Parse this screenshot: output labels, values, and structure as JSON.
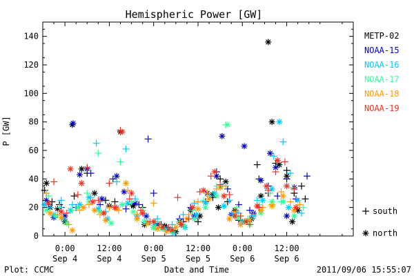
{
  "chart_data": {
    "type": "scatter",
    "title": "Hemispheric Power [GW]",
    "ylabel": "P [GW]",
    "xlabel": "Date and Time",
    "ylim": [
      0,
      150
    ],
    "yticks": [
      0,
      20,
      40,
      60,
      80,
      100,
      120,
      140
    ],
    "xlim_hours": [
      -6,
      78
    ],
    "xticks": [
      {
        "h": 0,
        "time": "0:00",
        "date": "Sep 4"
      },
      {
        "h": 12,
        "time": "12:00",
        "date": "Sep 4"
      },
      {
        "h": 24,
        "time": "0:00",
        "date": "Sep 5"
      },
      {
        "h": 36,
        "time": "12:00",
        "date": "Sep 5"
      },
      {
        "h": 48,
        "time": "0:00",
        "date": "Sep 6"
      },
      {
        "h": 60,
        "time": "12:00",
        "date": "Sep 6"
      }
    ],
    "legend_placement": "right",
    "marker_legend": [
      {
        "glyph": "+",
        "label": "south"
      },
      {
        "glyph": "*",
        "label": "north"
      }
    ],
    "series": [
      {
        "name": "METP-02",
        "color": "#000000",
        "south": [
          [
            -5.5,
            32
          ],
          [
            -3.5,
            24
          ],
          [
            -1.5,
            22
          ],
          [
            2.5,
            28
          ],
          [
            6,
            44
          ],
          [
            11,
            25
          ],
          [
            13.5,
            24
          ],
          [
            18,
            22
          ],
          [
            21,
            20
          ],
          [
            26,
            8
          ],
          [
            29,
            4
          ],
          [
            32,
            10
          ],
          [
            36,
            10
          ],
          [
            40,
            27
          ],
          [
            42,
            40
          ],
          [
            44,
            24
          ],
          [
            47,
            11
          ],
          [
            50,
            12
          ],
          [
            52,
            50
          ],
          [
            55,
            30
          ],
          [
            57,
            51
          ],
          [
            60,
            46
          ],
          [
            62,
            30
          ],
          [
            64,
            35
          ],
          [
            65,
            26
          ]
        ],
        "north": [
          [
            -5,
            37
          ],
          [
            -4,
            20
          ],
          [
            -2,
            19
          ],
          [
            0,
            10
          ],
          [
            2,
            78
          ],
          [
            4.5,
            47
          ],
          [
            8,
            30
          ],
          [
            12,
            21
          ],
          [
            15,
            73
          ],
          [
            18.5,
            21
          ],
          [
            21.5,
            8
          ],
          [
            24,
            6
          ],
          [
            27,
            7
          ],
          [
            30,
            3
          ],
          [
            31,
            10
          ],
          [
            34,
            18
          ],
          [
            36.5,
            14
          ],
          [
            40,
            29
          ],
          [
            41.5,
            20
          ],
          [
            43.5,
            38
          ],
          [
            46,
            18
          ],
          [
            48,
            10
          ],
          [
            50.5,
            12
          ],
          [
            53,
            28
          ],
          [
            55,
            136
          ],
          [
            56,
            80
          ],
          [
            58,
            50
          ],
          [
            60,
            42
          ],
          [
            61.5,
            10
          ],
          [
            63,
            18
          ]
        ]
      },
      {
        "name": "NOAA-15",
        "color": "#0000cc",
        "south": [
          [
            -4.5,
            22
          ],
          [
            -1,
            20
          ],
          [
            3,
            20
          ],
          [
            7,
            44
          ],
          [
            9.5,
            22
          ],
          [
            13,
            40
          ],
          [
            16.5,
            19
          ],
          [
            20,
            22
          ],
          [
            22.5,
            68
          ],
          [
            24,
            30
          ],
          [
            27.5,
            6
          ],
          [
            31,
            12
          ],
          [
            34,
            20
          ],
          [
            38,
            24
          ],
          [
            41,
            45
          ],
          [
            44,
            33
          ],
          [
            47,
            22
          ],
          [
            50,
            18
          ],
          [
            52.5,
            40
          ],
          [
            55,
            35
          ],
          [
            57.5,
            28
          ],
          [
            60,
            40
          ],
          [
            62.5,
            26
          ],
          [
            65.5,
            42
          ]
        ],
        "north": [
          [
            -5,
            25
          ],
          [
            -3,
            13
          ],
          [
            0,
            14
          ],
          [
            2.2,
            79
          ],
          [
            4,
            43
          ],
          [
            6,
            47
          ],
          [
            10,
            26
          ],
          [
            14,
            42
          ],
          [
            16,
            31
          ],
          [
            19,
            23
          ],
          [
            22,
            14
          ],
          [
            25,
            8
          ],
          [
            28,
            5
          ],
          [
            31.5,
            8
          ],
          [
            35,
            14
          ],
          [
            38.5,
            30
          ],
          [
            41,
            42
          ],
          [
            42.5,
            70
          ],
          [
            45,
            15
          ],
          [
            48.5,
            63
          ],
          [
            51,
            16
          ],
          [
            53,
            39
          ],
          [
            55.5,
            58
          ],
          [
            57,
            48
          ],
          [
            60,
            14
          ],
          [
            62,
            34
          ]
        ]
      },
      {
        "name": "NOAA-16",
        "color": "#00c8ff",
        "south": [
          [
            -4,
            20
          ],
          [
            -1,
            25
          ],
          [
            2,
            22
          ],
          [
            7,
            27
          ],
          [
            8.5,
            65
          ],
          [
            11,
            17
          ],
          [
            14,
            38
          ],
          [
            16.5,
            61
          ],
          [
            19,
            26
          ],
          [
            21.5,
            15
          ],
          [
            25,
            12
          ],
          [
            29,
            8
          ],
          [
            32,
            15
          ],
          [
            35,
            23
          ],
          [
            39,
            28
          ],
          [
            42.5,
            35
          ],
          [
            44.5,
            25
          ],
          [
            47,
            16
          ],
          [
            50,
            12
          ],
          [
            52,
            25
          ],
          [
            55,
            33
          ],
          [
            56.5,
            56
          ],
          [
            59,
            66
          ],
          [
            61,
            44
          ],
          [
            64,
            16
          ]
        ],
        "north": [
          [
            -5.5,
            22
          ],
          [
            -3,
            15
          ],
          [
            -0.5,
            12
          ],
          [
            1.5,
            18
          ],
          [
            4,
            22
          ],
          [
            6.5,
            27
          ],
          [
            9,
            19
          ],
          [
            11.5,
            12
          ],
          [
            14,
            20
          ],
          [
            17,
            23
          ],
          [
            19.5,
            14
          ],
          [
            22,
            10
          ],
          [
            24.5,
            8
          ],
          [
            27,
            5
          ],
          [
            29.5,
            2
          ],
          [
            32.5,
            6
          ],
          [
            35.5,
            15
          ],
          [
            38,
            23
          ],
          [
            40.5,
            30
          ],
          [
            43,
            21
          ],
          [
            45.5,
            15
          ],
          [
            48,
            10
          ],
          [
            51,
            14
          ],
          [
            53.5,
            25
          ],
          [
            56,
            33
          ],
          [
            58,
            80
          ],
          [
            60.5,
            20
          ],
          [
            63,
            25
          ]
        ]
      },
      {
        "name": "NOAA-17",
        "color": "#33ff99",
        "south": [
          [
            -4.5,
            28
          ],
          [
            -1.5,
            20
          ],
          [
            2,
            18
          ],
          [
            6,
            30
          ],
          [
            9,
            58
          ],
          [
            12,
            20
          ],
          [
            15,
            52
          ],
          [
            18,
            24
          ],
          [
            21,
            18
          ],
          [
            24.5,
            10
          ],
          [
            28,
            6
          ],
          [
            31,
            10
          ],
          [
            34.5,
            18
          ],
          [
            37.5,
            25
          ],
          [
            41,
            35
          ],
          [
            43.5,
            78
          ],
          [
            46.5,
            20
          ],
          [
            49.5,
            12
          ],
          [
            52.5,
            22
          ],
          [
            55.5,
            30
          ],
          [
            58.5,
            24
          ],
          [
            61.5,
            34
          ],
          [
            64.5,
            20
          ]
        ],
        "north": [
          [
            -5,
            18
          ],
          [
            -2.5,
            14
          ],
          [
            0.5,
            9
          ],
          [
            3.5,
            20
          ],
          [
            6.5,
            24
          ],
          [
            9.5,
            17
          ],
          [
            12.5,
            9
          ],
          [
            15.5,
            22
          ],
          [
            18.5,
            17
          ],
          [
            21.5,
            10
          ],
          [
            24,
            6
          ],
          [
            26.5,
            5
          ],
          [
            29,
            3
          ],
          [
            32,
            7
          ],
          [
            35,
            12
          ],
          [
            38,
            20
          ],
          [
            41,
            28
          ],
          [
            44,
            78
          ],
          [
            47,
            13
          ],
          [
            50,
            8
          ],
          [
            53,
            16
          ],
          [
            56,
            24
          ],
          [
            59,
            24
          ],
          [
            62,
            14
          ]
        ]
      },
      {
        "name": "NOAA-18",
        "color": "#ff9900",
        "south": [
          [
            -5,
            30
          ],
          [
            -2,
            15
          ],
          [
            1,
            8
          ],
          [
            4,
            18
          ],
          [
            6.5,
            22
          ],
          [
            9.5,
            15
          ],
          [
            12,
            20
          ],
          [
            14.5,
            18
          ],
          [
            17,
            32
          ],
          [
            19.5,
            15
          ],
          [
            22,
            8
          ],
          [
            24,
            23
          ],
          [
            26,
            6
          ],
          [
            28.5,
            5
          ],
          [
            31,
            9
          ],
          [
            33.5,
            15
          ],
          [
            36,
            24
          ],
          [
            38.5,
            30
          ],
          [
            41,
            33
          ],
          [
            43.5,
            35
          ],
          [
            46,
            17
          ],
          [
            48.5,
            10
          ],
          [
            51,
            15
          ],
          [
            53.5,
            20
          ],
          [
            56,
            22
          ],
          [
            58.5,
            31
          ],
          [
            61,
            24
          ],
          [
            63.5,
            22
          ]
        ],
        "north": [
          [
            -4,
            16
          ],
          [
            -1,
            13
          ],
          [
            2,
            4
          ],
          [
            5,
            20
          ],
          [
            8,
            18
          ],
          [
            11,
            11
          ],
          [
            14,
            19
          ],
          [
            16.5,
            37
          ],
          [
            19.5,
            12
          ],
          [
            22.5,
            9
          ],
          [
            25,
            5
          ],
          [
            27.5,
            3
          ],
          [
            30,
            6
          ],
          [
            33,
            12
          ],
          [
            36,
            19
          ],
          [
            39,
            26
          ],
          [
            42,
            34
          ],
          [
            44.5,
            12
          ],
          [
            47.5,
            8
          ],
          [
            50,
            11
          ],
          [
            53,
            18
          ],
          [
            56,
            21
          ],
          [
            59,
            28
          ],
          [
            62,
            18
          ]
        ]
      },
      {
        "name": "NOAA-19",
        "color": "#ee3322",
        "south": [
          [
            -3,
            38
          ],
          [
            0.5,
            16
          ],
          [
            3.5,
            29
          ],
          [
            6,
            48
          ],
          [
            9,
            25
          ],
          [
            12,
            37
          ],
          [
            15,
            74
          ],
          [
            17.5,
            26
          ],
          [
            20.5,
            18
          ],
          [
            23,
            10
          ],
          [
            25.5,
            8
          ],
          [
            28,
            6
          ],
          [
            30.5,
            27
          ],
          [
            33.5,
            12
          ],
          [
            36.5,
            31
          ],
          [
            39.5,
            42
          ],
          [
            42,
            36
          ],
          [
            44.5,
            29
          ],
          [
            47.5,
            14
          ],
          [
            50,
            8
          ],
          [
            52.5,
            20
          ],
          [
            55,
            32
          ],
          [
            57,
            45
          ],
          [
            59.5,
            52
          ],
          [
            62,
            33
          ]
        ],
        "north": [
          [
            -4.5,
            23
          ],
          [
            -1,
            17
          ],
          [
            1.5,
            47
          ],
          [
            4.5,
            37
          ],
          [
            7.5,
            24
          ],
          [
            10.5,
            16
          ],
          [
            13.5,
            20
          ],
          [
            15.5,
            73
          ],
          [
            18,
            30
          ],
          [
            21,
            16
          ],
          [
            24,
            10
          ],
          [
            26.5,
            6
          ],
          [
            29,
            4
          ],
          [
            31.5,
            8
          ],
          [
            34.5,
            20
          ],
          [
            37.5,
            32
          ],
          [
            40.5,
            45
          ],
          [
            43,
            28
          ],
          [
            46,
            14
          ],
          [
            49,
            10
          ],
          [
            52,
            21
          ],
          [
            54.5,
            35
          ],
          [
            57.5,
            53
          ],
          [
            60,
            35
          ],
          [
            62.5,
            20
          ]
        ]
      }
    ]
  },
  "footer": {
    "left": "Plot: CCMC",
    "timestamp": "2011/09/06 15:55:07"
  }
}
